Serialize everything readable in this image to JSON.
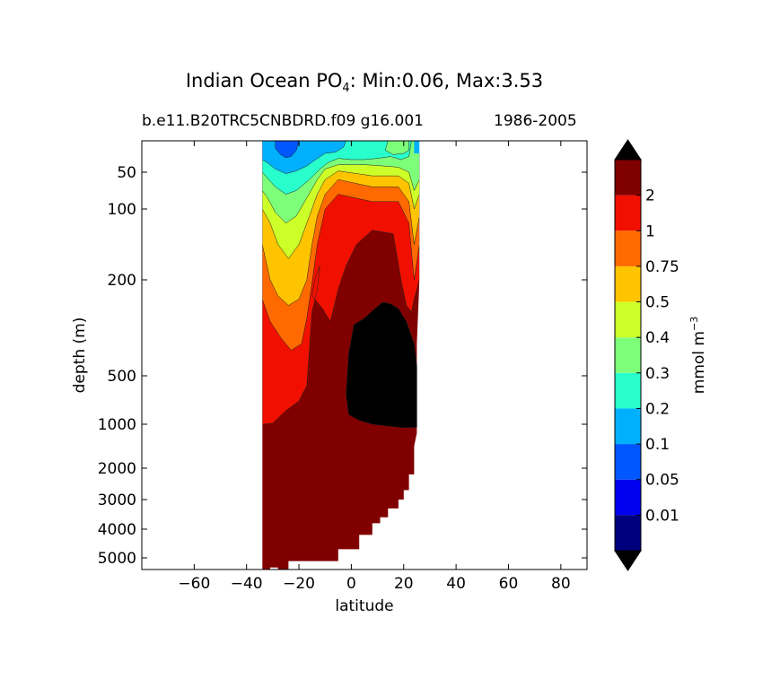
{
  "figure": {
    "title_main": "Indian Ocean PO",
    "title_sub": "4",
    "title_rest": ": Min:0.06, Max:3.53",
    "subtitle_left": "b.e11.B20TRC5CNBDRD.f09 g16.001",
    "subtitle_right": "1986-2005"
  },
  "chart_data": {
    "type": "heatmap",
    "xlabel": "latitude",
    "ylabel": "depth (m)",
    "xlim": [
      -80,
      90
    ],
    "x_ticks": [
      -60,
      -40,
      -20,
      0,
      20,
      40,
      60,
      80
    ],
    "y_scale": "log-like (depth axis, increasing downward)",
    "y_ticks": [
      50,
      100,
      200,
      500,
      1000,
      2000,
      3000,
      4000,
      5000
    ],
    "ylim": [
      0,
      5500
    ],
    "data_extent_latitude": [
      -34,
      26
    ],
    "min": 0.06,
    "max": 3.53,
    "colorbar": {
      "label": "mmol m",
      "label_exp": "−3",
      "levels": [
        0.01,
        0.05,
        0.1,
        0.2,
        0.3,
        0.4,
        0.5,
        0.75,
        1,
        2
      ],
      "level_labels": [
        "0.01",
        "0.05",
        "0.1",
        "0.2",
        "0.3",
        "0.4",
        "0.5",
        "0.75",
        "1",
        "2"
      ],
      "colors": [
        "#00007f",
        "#0000ee",
        "#0056ff",
        "#00b0ff",
        "#29ffcd",
        "#7dff7a",
        "#cdff29",
        "#ffc400",
        "#ff6a00",
        "#f11000",
        "#800000"
      ],
      "extend": "both",
      "over_color": "#000000"
    },
    "features": [
      {
        "name": "surface low-phosphate minimum",
        "latitude_range": [
          -30,
          -20
        ],
        "depth_range": [
          0,
          60
        ],
        "value_class": "0.05"
      },
      {
        "name": "high-phosphate core (>3)",
        "latitude_range": [
          0,
          25
        ],
        "depth_range": [
          300,
          1000
        ],
        "value_class": ">2"
      }
    ],
    "grid": false,
    "legend": "colorbar-right"
  }
}
